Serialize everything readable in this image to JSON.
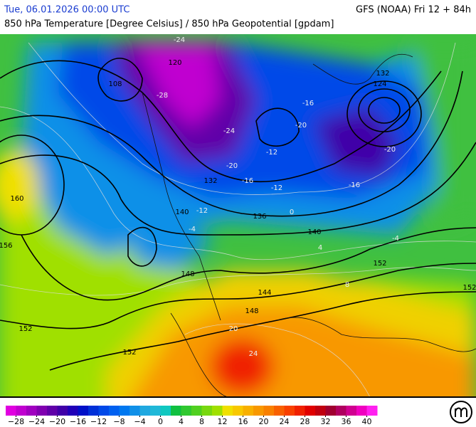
{
  "header": {
    "left": "Tue, 06.01.2026 00:00 UTC",
    "right": "GFS (NOAA) Fri 12 + 84h",
    "subtitle": "850 hPa Temperature [Degree Celsius] / 850 hPa Geopotential [gpdam]"
  },
  "legend": {
    "range": [
      -30,
      42
    ],
    "colors": [
      "#e000e0",
      "#c000d0",
      "#a000c0",
      "#8000b0",
      "#6000a8",
      "#4000a8",
      "#2000b8",
      "#0010c8",
      "#0030d8",
      "#0048e8",
      "#0060f0",
      "#0078f0",
      "#1090e8",
      "#20a8e0",
      "#20b8d8",
      "#10c8c0",
      "#10c040",
      "#30c830",
      "#50d020",
      "#78d810",
      "#a0e000",
      "#f0e000",
      "#f8c800",
      "#f8b000",
      "#f89800",
      "#f88000",
      "#f86000",
      "#f84000",
      "#f02000",
      "#e00000",
      "#c00010",
      "#a00030",
      "#b00060",
      "#d00090",
      "#f000c0",
      "#ff20f0"
    ],
    "ticks": [
      {
        "value": -28,
        "label": "−28"
      },
      {
        "value": -24,
        "label": "−24"
      },
      {
        "value": -20,
        "label": "−20"
      },
      {
        "value": -16,
        "label": "−16"
      },
      {
        "value": -12,
        "label": "−12"
      },
      {
        "value": -8,
        "label": "−8"
      },
      {
        "value": -4,
        "label": "−4"
      },
      0,
      4,
      8,
      12,
      16,
      20,
      24,
      28,
      32,
      36,
      40
    ]
  },
  "contour_labels": [
    120,
    108,
    160,
    156,
    152,
    152,
    148,
    144,
    148,
    140,
    140,
    136,
    132,
    132,
    152,
    152,
    124
  ],
  "temperature_labels": [
    -24,
    -28,
    -24,
    -20,
    -20,
    -16,
    -12,
    -12,
    -16,
    -20,
    -12,
    -16,
    -4,
    0,
    4,
    20,
    24,
    -4,
    8
  ]
}
